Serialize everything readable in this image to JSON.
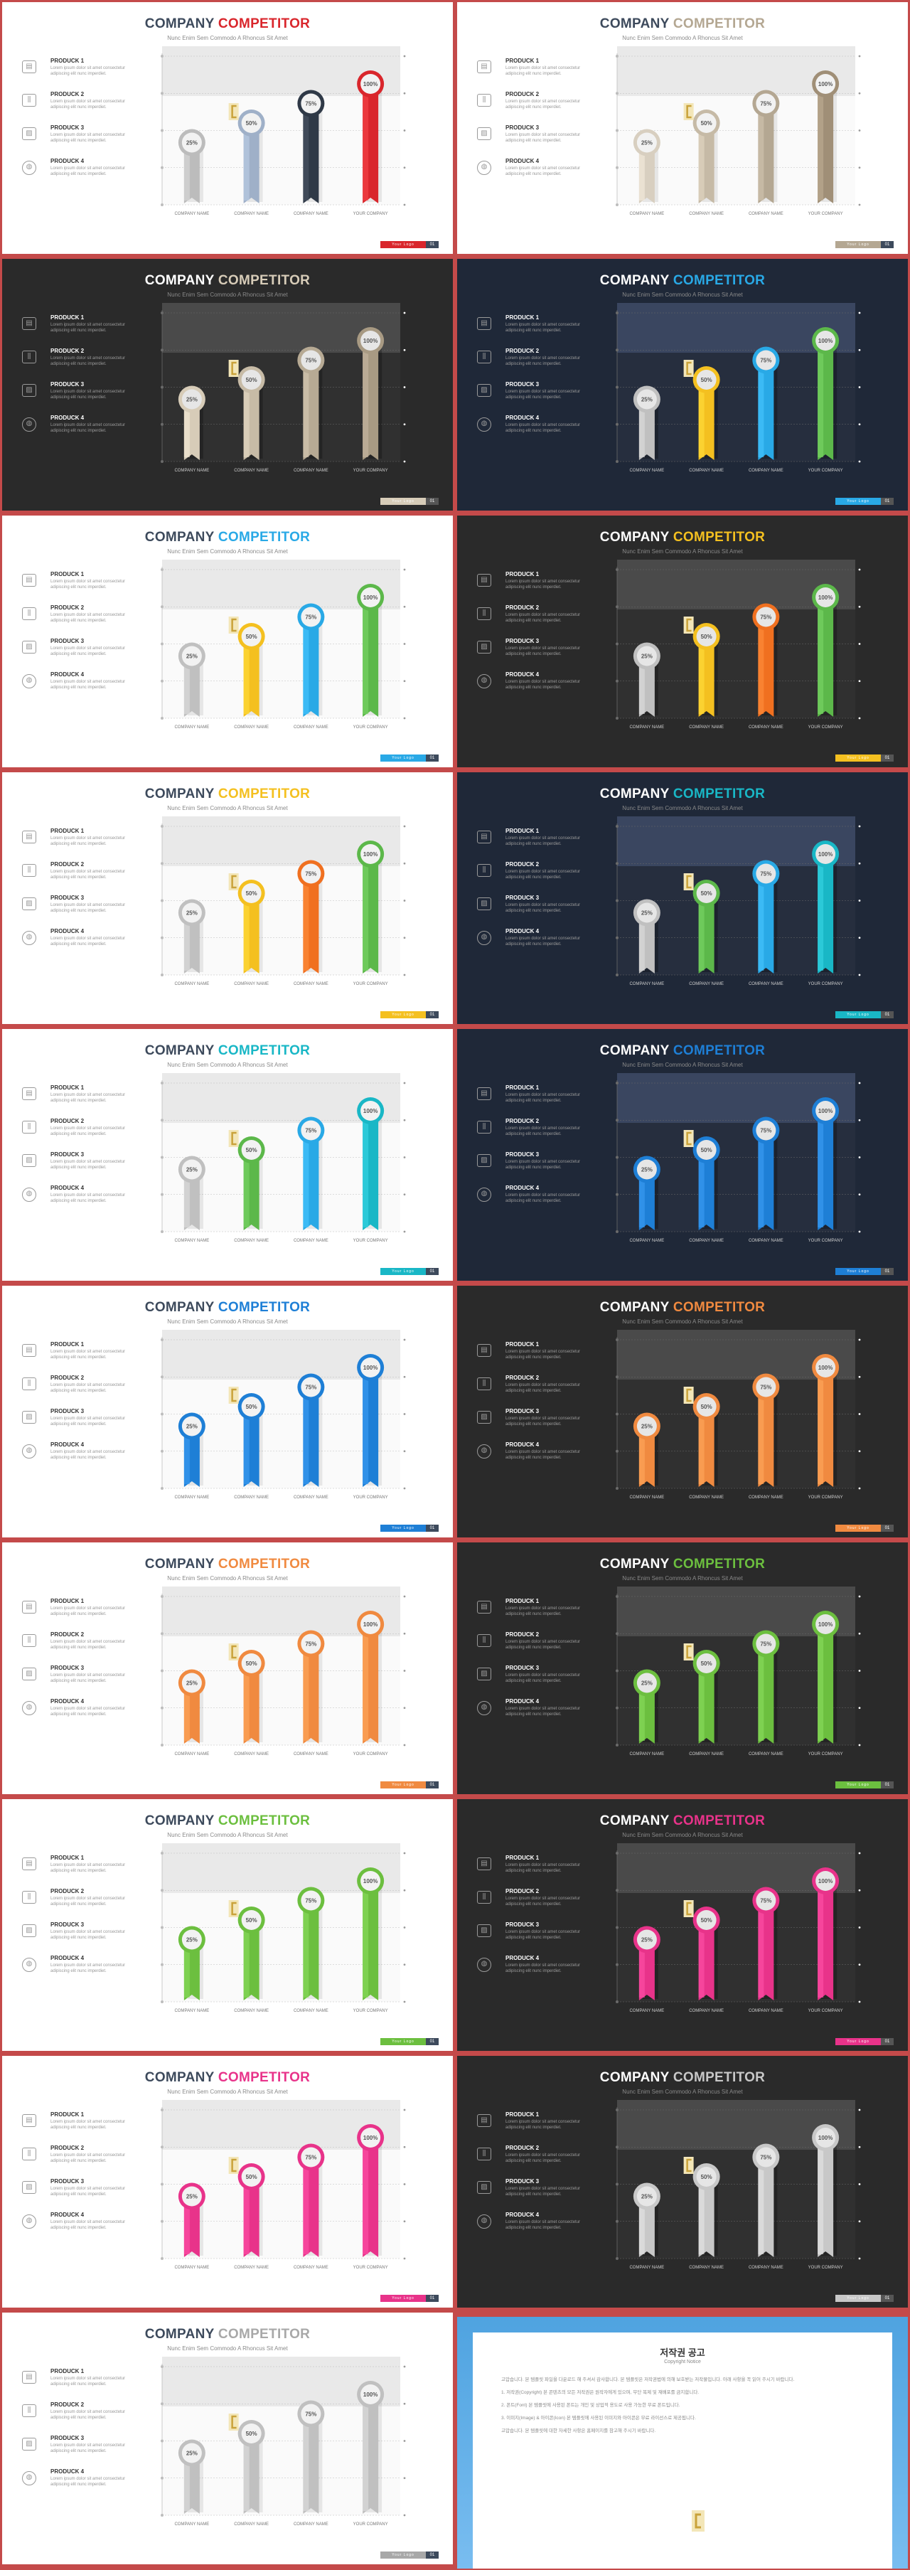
{
  "slide": {
    "title_word1": "COMPANY",
    "title_word2": "COMPETITOR",
    "subtitle": "Nunc Enim Sem Commodo A Rhoncus Sit Amet",
    "products": [
      {
        "name": "PRODUCK 1",
        "desc": "Lorem ipsum dolor sit amet consectetur adipiscing elit nunc imperdiet.",
        "icon": "wallet-icon",
        "glyph": "▤"
      },
      {
        "name": "PRODUCK 2",
        "desc": "Lorem ipsum dolor sit amet consectetur adipiscing elit nunc imperdiet.",
        "icon": "equalizer-icon",
        "glyph": "⫼"
      },
      {
        "name": "PRODUCK 3",
        "desc": "Lorem ipsum dolor sit amet consectetur adipiscing elit nunc imperdiet.",
        "icon": "picture-icon",
        "glyph": "▨"
      },
      {
        "name": "PRODUCK 4",
        "desc": "Lorem ipsum dolor sit amet consectetur adipiscing elit nunc imperdiet.",
        "icon": "globe-icon",
        "glyph": "◍"
      }
    ],
    "footer_label": "Your Logo",
    "footer_number": "01"
  },
  "chart_data": {
    "type": "bar",
    "categories": [
      "COMPANY NAME",
      "COMPANY NAME",
      "COMPANY NAME",
      "YOUR COMPANY"
    ],
    "values": [
      25,
      50,
      75,
      100
    ],
    "value_labels": [
      "25%",
      "50%",
      "75%",
      "100%"
    ],
    "ylim": [
      0,
      100
    ],
    "grid": true
  },
  "variants": [
    {
      "theme": "light",
      "accent": "#d9262c",
      "colors": [
        "#bcbcbc",
        "#9fb0c8",
        "#2f3947",
        "#d9262c"
      ],
      "band": "gray"
    },
    {
      "theme": "light",
      "accent": "#b4a792",
      "colors": [
        "#d8cfc0",
        "#c6baa6",
        "#b4a792",
        "#a08f77"
      ],
      "band": "gray"
    },
    {
      "theme": "dark",
      "accent": "#d7ccb8",
      "colors": [
        "#d7ccb8",
        "#c7bba6",
        "#b7aa94",
        "#a89a83"
      ],
      "band": "gray"
    },
    {
      "theme": "navy",
      "accent": "#29a9e6",
      "colors": [
        "#c0c0c0",
        "#f4c020",
        "#29a9e6",
        "#5cb84a"
      ],
      "band": "navy"
    },
    {
      "theme": "light",
      "accent": "#29a9e6",
      "colors": [
        "#c0c0c0",
        "#f4c020",
        "#29a9e6",
        "#5cb84a"
      ],
      "band": "gray"
    },
    {
      "theme": "dark",
      "accent": "#f4c020",
      "colors": [
        "#c0c0c0",
        "#f4c020",
        "#f07020",
        "#5cb84a"
      ],
      "band": "gray"
    },
    {
      "theme": "light",
      "accent": "#f4c020",
      "colors": [
        "#c0c0c0",
        "#f4c020",
        "#f07020",
        "#5cb84a"
      ],
      "band": "gray"
    },
    {
      "theme": "navy",
      "accent": "#19b7c6",
      "colors": [
        "#c0c0c0",
        "#5cb84a",
        "#29a9e6",
        "#19b7c6"
      ],
      "band": "navy"
    },
    {
      "theme": "light",
      "accent": "#19b7c6",
      "colors": [
        "#c0c0c0",
        "#5cb84a",
        "#29a9e6",
        "#19b7c6"
      ],
      "band": "gray"
    },
    {
      "theme": "navy",
      "accent": "#1e7fd6",
      "colors": [
        "#1e7fd6",
        "#1e7fd6",
        "#1e7fd6",
        "#1e7fd6"
      ],
      "band": "navy"
    },
    {
      "theme": "light",
      "accent": "#1e7fd6",
      "colors": [
        "#1e7fd6",
        "#1e7fd6",
        "#1e7fd6",
        "#1e7fd6"
      ],
      "band": "gray"
    },
    {
      "theme": "dark",
      "accent": "#f08a40",
      "colors": [
        "#f08a40",
        "#f08a40",
        "#f08a40",
        "#f08a40"
      ],
      "band": "gray"
    },
    {
      "theme": "light",
      "accent": "#f08a40",
      "colors": [
        "#f08a40",
        "#f08a40",
        "#f08a40",
        "#f08a40"
      ],
      "band": "gray"
    },
    {
      "theme": "dark",
      "accent": "#6cbf3f",
      "colors": [
        "#6cbf3f",
        "#6cbf3f",
        "#6cbf3f",
        "#6cbf3f"
      ],
      "band": "gray"
    },
    {
      "theme": "light",
      "accent": "#6cbf3f",
      "colors": [
        "#6cbf3f",
        "#6cbf3f",
        "#6cbf3f",
        "#6cbf3f"
      ],
      "band": "gray"
    },
    {
      "theme": "dark",
      "accent": "#e8338a",
      "colors": [
        "#e8338a",
        "#e8338a",
        "#e8338a",
        "#e8338a"
      ],
      "band": "gray"
    },
    {
      "theme": "light",
      "accent": "#e8338a",
      "colors": [
        "#e8338a",
        "#e8338a",
        "#e8338a",
        "#e8338a"
      ],
      "band": "gray"
    },
    {
      "theme": "dark",
      "accent": "#c8c8c8",
      "colors": [
        "#c8c8c8",
        "#c8c8c8",
        "#c8c8c8",
        "#c8c8c8"
      ],
      "band": "gray"
    },
    {
      "theme": "light",
      "accent": "#a8a8a8",
      "colors": [
        "#c0c0c0",
        "#c0c0c0",
        "#c0c0c0",
        "#c0c0c0"
      ],
      "band": "gray"
    }
  ],
  "notice": {
    "title": "저작권 공고",
    "subtitle": "Copyright Notice",
    "paragraphs": [
      "고맙습니다. 본 템플릿 파일을 다운로드 해 주셔서 감사합니다. 본 템플릿은 저작권법에 의해 보호받는 저작물입니다. 아래 사항을 꼭 읽어 주시기 바랍니다.",
      "1. 저작권(Copyright) 본 콘텐츠의 모든 저작권은 원작자에게 있으며, 무단 복제 및 재배포를 금지합니다.",
      "2. 폰트(Font) 본 템플릿에 사용된 폰트는 개인 및 상업적 용도로 사용 가능한 무료 폰트입니다.",
      "3. 이미지(Image) & 아이콘(Icon) 본 템플릿에 사용된 이미지와 아이콘은 무료 라이선스로 제공됩니다.",
      "고맙습니다. 본 템플릿에 대한 자세한 사항은 홈페이지를 참고해 주시기 바랍니다."
    ]
  }
}
